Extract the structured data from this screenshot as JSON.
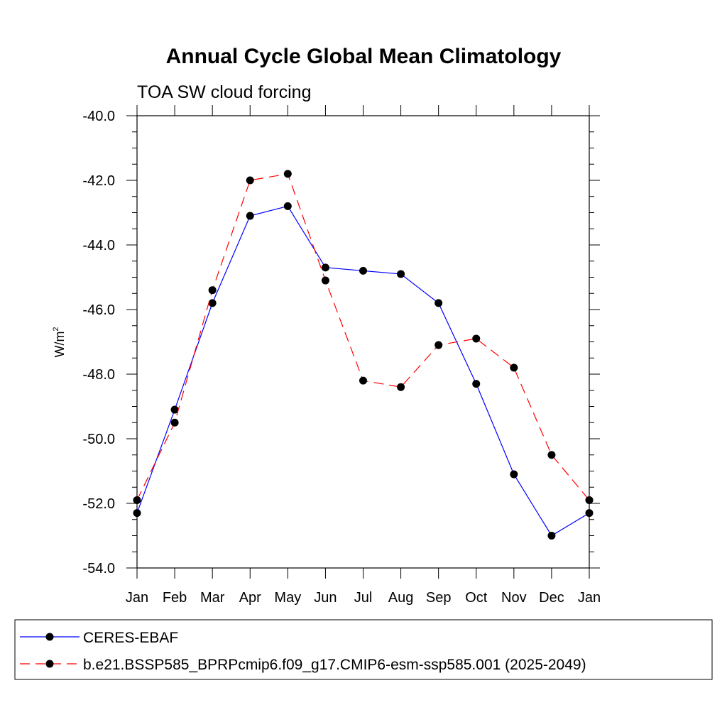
{
  "chart_data": {
    "type": "line",
    "title": "Annual Cycle Global Mean Climatology",
    "subtitle": "TOA SW cloud forcing",
    "ylabel": "W/m",
    "ylabel_superscript": "2",
    "xlabel": "",
    "categories": [
      "Jan",
      "Feb",
      "Mar",
      "Apr",
      "May",
      "Jun",
      "Jul",
      "Aug",
      "Sep",
      "Oct",
      "Nov",
      "Dec",
      "Jan"
    ],
    "ylim": [
      -54.0,
      -40.0
    ],
    "yticks": [
      -40.0,
      -42.0,
      -44.0,
      -46.0,
      -48.0,
      -50.0,
      -52.0,
      -54.0
    ],
    "ytick_labels": [
      "-40.0",
      "-42.0",
      "-44.0",
      "-46.0",
      "-48.0",
      "-50.0",
      "-52.0",
      "-54.0"
    ],
    "grid": false,
    "legend_position": "bottom",
    "series": [
      {
        "name": "CERES-EBAF",
        "color": "#0000ff",
        "dash": "solid",
        "marker": "circle",
        "values": [
          -52.3,
          -49.1,
          -45.8,
          -43.1,
          -42.8,
          -44.7,
          -44.8,
          -44.9,
          -45.8,
          -48.3,
          -51.1,
          -53.0,
          -52.3
        ]
      },
      {
        "name": "b.e21.BSSP585_BPRPcmip6.f09_g17.CMIP6-esm-ssp585.001 (2025-2049)",
        "color": "#ff0000",
        "dash": "dashed",
        "marker": "circle",
        "values": [
          -51.9,
          -49.5,
          -45.4,
          -42.0,
          -41.8,
          -45.1,
          -48.2,
          -48.4,
          -47.1,
          -46.9,
          -47.8,
          -50.5,
          -51.9
        ]
      }
    ]
  }
}
